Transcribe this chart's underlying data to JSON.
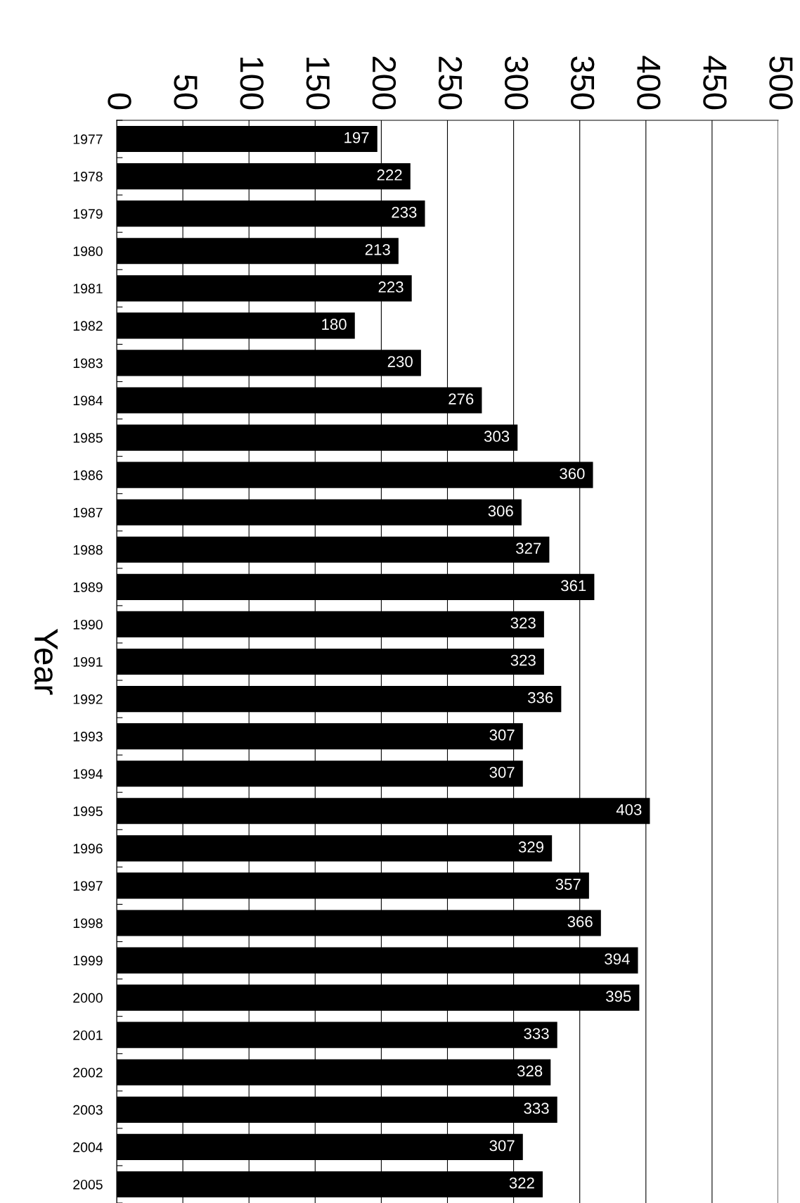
{
  "chart_data": {
    "type": "bar",
    "orientation": "horizontal",
    "ylabel": "Year",
    "categories": [
      "1977",
      "1978",
      "1979",
      "1980",
      "1981",
      "1982",
      "1983",
      "1984",
      "1985",
      "1986",
      "1987",
      "1988",
      "1989",
      "1990",
      "1991",
      "1992",
      "1993",
      "1994",
      "1995",
      "1996",
      "1997",
      "1998",
      "1999",
      "2000",
      "2001",
      "2002",
      "2003",
      "2004",
      "2005"
    ],
    "values": [
      197,
      222,
      233,
      213,
      223,
      180,
      230,
      276,
      303,
      360,
      306,
      327,
      361,
      323,
      323,
      336,
      307,
      307,
      403,
      329,
      357,
      366,
      394,
      395,
      333,
      328,
      333,
      307,
      322
    ],
    "color": "#000000",
    "xlim": [
      0,
      500
    ],
    "xticks": [
      0,
      50,
      100,
      150,
      200,
      250,
      300,
      350,
      400,
      450,
      500
    ],
    "grid": "x",
    "data_labels": true,
    "legend": false
  }
}
